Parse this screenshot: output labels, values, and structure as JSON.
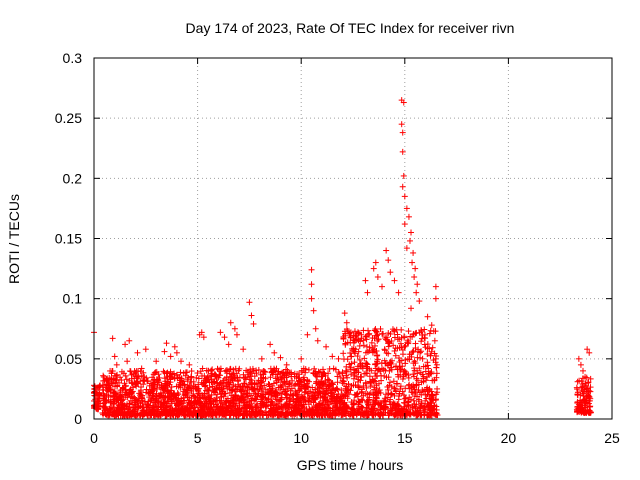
{
  "chart_data": {
    "type": "scatter",
    "title": "Day 174 of 2023, Rate Of TEC Index for receiver rivn",
    "xlabel": "GPS time / hours",
    "ylabel": "ROTI / TECUs",
    "xlim": [
      0,
      25
    ],
    "ylim": [
      0,
      0.3
    ],
    "x_ticks": [
      0,
      5,
      10,
      15,
      20,
      25
    ],
    "x_tick_labels": [
      "0",
      "5",
      "10",
      "15",
      "20",
      "25"
    ],
    "y_ticks": [
      0,
      0.05,
      0.1,
      0.15,
      0.2,
      0.25,
      0.3
    ],
    "y_tick_labels": [
      "0",
      "0.05",
      "0.1",
      "0.15",
      "0.2",
      "0.25",
      "0.3"
    ],
    "grid": true,
    "marker": "plus",
    "color": "#ff0000",
    "series": [
      {
        "points": [
          [
            0.0,
            0.072
          ],
          [
            0.0,
            0.028
          ],
          [
            0.0,
            0.022
          ],
          [
            0.0,
            0.015
          ],
          [
            0.0,
            0.011
          ],
          [
            0.0,
            0.009
          ],
          [
            0.9,
            0.067
          ],
          [
            1.0,
            0.052
          ],
          [
            1.1,
            0.045
          ],
          [
            1.5,
            0.062
          ],
          [
            1.7,
            0.065
          ],
          [
            1.6,
            0.048
          ],
          [
            2.1,
            0.055
          ],
          [
            2.5,
            0.058
          ],
          [
            2.3,
            0.042
          ],
          [
            3.0,
            0.048
          ],
          [
            3.4,
            0.056
          ],
          [
            3.5,
            0.063
          ],
          [
            3.7,
            0.052
          ],
          [
            3.9,
            0.06
          ],
          [
            4.0,
            0.055
          ],
          [
            4.2,
            0.048
          ],
          [
            4.6,
            0.045
          ],
          [
            5.1,
            0.07
          ],
          [
            5.2,
            0.072
          ],
          [
            5.3,
            0.068
          ],
          [
            6.1,
            0.072
          ],
          [
            6.3,
            0.068
          ],
          [
            6.5,
            0.062
          ],
          [
            6.6,
            0.08
          ],
          [
            6.8,
            0.075
          ],
          [
            6.9,
            0.07
          ],
          [
            7.2,
            0.058
          ],
          [
            7.5,
            0.097
          ],
          [
            7.6,
            0.086
          ],
          [
            7.7,
            0.079
          ],
          [
            8.1,
            0.05
          ],
          [
            8.5,
            0.062
          ],
          [
            8.7,
            0.055
          ],
          [
            9.0,
            0.051
          ],
          [
            9.3,
            0.045
          ],
          [
            10.0,
            0.05
          ],
          [
            10.3,
            0.07
          ],
          [
            10.5,
            0.124
          ],
          [
            10.5,
            0.112
          ],
          [
            10.5,
            0.1
          ],
          [
            10.6,
            0.09
          ],
          [
            10.7,
            0.075
          ],
          [
            10.8,
            0.065
          ],
          [
            11.2,
            0.06
          ],
          [
            11.5,
            0.052
          ],
          [
            11.8,
            0.05
          ],
          [
            12.1,
            0.088
          ],
          [
            12.2,
            0.08
          ],
          [
            12.4,
            0.072
          ],
          [
            12.6,
            0.065
          ],
          [
            12.9,
            0.07
          ],
          [
            13.1,
            0.115
          ],
          [
            13.2,
            0.105
          ],
          [
            13.5,
            0.125
          ],
          [
            13.6,
            0.13
          ],
          [
            13.7,
            0.118
          ],
          [
            13.9,
            0.11
          ],
          [
            14.1,
            0.14
          ],
          [
            14.2,
            0.132
          ],
          [
            14.3,
            0.122
          ],
          [
            14.5,
            0.115
          ],
          [
            14.7,
            0.105
          ],
          [
            14.85,
            0.265
          ],
          [
            14.95,
            0.263
          ],
          [
            14.85,
            0.245
          ],
          [
            14.9,
            0.238
          ],
          [
            14.9,
            0.222
          ],
          [
            14.95,
            0.202
          ],
          [
            14.9,
            0.193
          ],
          [
            15.0,
            0.185
          ],
          [
            15.1,
            0.175
          ],
          [
            15.2,
            0.168
          ],
          [
            15.0,
            0.162
          ],
          [
            15.3,
            0.155
          ],
          [
            15.25,
            0.148
          ],
          [
            15.1,
            0.142
          ],
          [
            15.4,
            0.138
          ],
          [
            15.35,
            0.13
          ],
          [
            15.5,
            0.125
          ],
          [
            15.45,
            0.118
          ],
          [
            15.6,
            0.112
          ],
          [
            15.55,
            0.105
          ],
          [
            15.7,
            0.098
          ],
          [
            15.3,
            0.092
          ],
          [
            16.1,
            0.085
          ],
          [
            16.3,
            0.078
          ],
          [
            16.4,
            0.073
          ],
          [
            16.5,
            0.11
          ],
          [
            16.5,
            0.1
          ],
          [
            16.45,
            0.065
          ],
          [
            23.4,
            0.05
          ],
          [
            23.5,
            0.045
          ],
          [
            23.6,
            0.04
          ],
          [
            23.8,
            0.058
          ],
          [
            23.9,
            0.055
          ],
          [
            23.7,
            0.035
          ]
        ],
        "dense_bands": [
          {
            "x_range": [
              0.0,
              0.3
            ],
            "y_range": [
              0.008,
              0.028
            ]
          },
          {
            "x_range": [
              0.4,
              5.0
            ],
            "y_range": [
              0.003,
              0.04
            ]
          },
          {
            "x_range": [
              5.0,
              12.0
            ],
            "y_range": [
              0.003,
              0.042
            ]
          },
          {
            "x_range": [
              12.0,
              16.6
            ],
            "y_range": [
              0.003,
              0.075
            ]
          },
          {
            "x_range": [
              23.3,
              24.0
            ],
            "y_range": [
              0.005,
              0.035
            ]
          }
        ]
      }
    ]
  }
}
